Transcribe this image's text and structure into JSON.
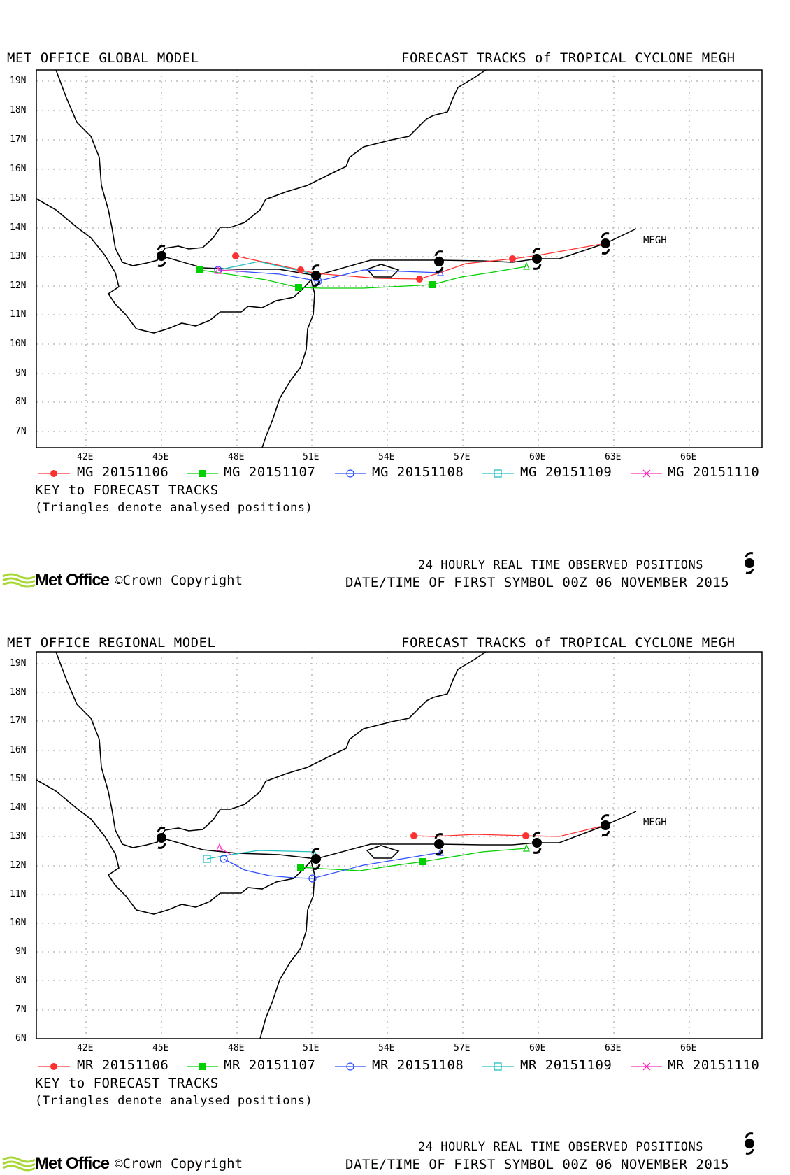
{
  "symbol_text": "MEGH",
  "panels": [
    {
      "model_title": "MET OFFICE GLOBAL MODEL",
      "forecast_title": "FORECAST TRACKS of TROPICAL CYCLONE MEGH",
      "yticks": [
        "19N",
        "18N",
        "17N",
        "16N",
        "15N",
        "14N",
        "13N",
        "12N",
        "11N",
        "10N",
        "9N",
        "8N",
        "7N"
      ],
      "xticks": [
        "42E",
        "45E",
        "48E",
        "51E",
        "54E",
        "57E",
        "60E",
        "63E",
        "66E"
      ],
      "legend": [
        {
          "label": "MG 20151106",
          "color": "#ff3030",
          "marker": "filled-circle"
        },
        {
          "label": "MG 20151107",
          "color": "#00d000",
          "marker": "filled-square"
        },
        {
          "label": "MG 20151108",
          "color": "#3050ff",
          "marker": "open-circle"
        },
        {
          "label": "MG 20151109",
          "color": "#20c0c0",
          "marker": "open-square"
        },
        {
          "label": "MG 20151110",
          "color": "#ff30c0",
          "marker": "cross"
        }
      ],
      "key_text": "KEY to FORECAST TRACKS",
      "triangle_note": "(Triangles denote analysed positions)",
      "obs_text": "24 HOURLY REAL TIME OBSERVED POSITIONS",
      "datetime_text": "DATE/TIME OF FIRST SYMBOL 00Z 06 NOVEMBER 2015",
      "logo": "Met Office",
      "copyright": "©Crown Copyright"
    },
    {
      "model_title": "MET OFFICE REGIONAL MODEL",
      "forecast_title": "FORECAST TRACKS of TROPICAL CYCLONE MEGH",
      "yticks": [
        "19N",
        "18N",
        "17N",
        "16N",
        "15N",
        "14N",
        "13N",
        "12N",
        "11N",
        "10N",
        "9N",
        "8N",
        "7N",
        "6N"
      ],
      "xticks": [
        "42E",
        "45E",
        "48E",
        "51E",
        "54E",
        "57E",
        "60E",
        "63E",
        "66E"
      ],
      "legend": [
        {
          "label": "MR 20151106",
          "color": "#ff3030",
          "marker": "filled-circle"
        },
        {
          "label": "MR 20151107",
          "color": "#00d000",
          "marker": "filled-square"
        },
        {
          "label": "MR 20151108",
          "color": "#3050ff",
          "marker": "open-circle"
        },
        {
          "label": "MR 20151109",
          "color": "#20c0c0",
          "marker": "open-square"
        },
        {
          "label": "MR 20151110",
          "color": "#ff30c0",
          "marker": "cross"
        }
      ],
      "key_text": "KEY to FORECAST TRACKS",
      "triangle_note": "(Triangles denote analysed positions)",
      "obs_text": "24 HOURLY REAL TIME OBSERVED POSITIONS",
      "datetime_text": "DATE/TIME OF FIRST SYMBOL 00Z 06 NOVEMBER 2015",
      "logo": "Met Office",
      "copyright": "©Crown Copyright"
    }
  ]
}
